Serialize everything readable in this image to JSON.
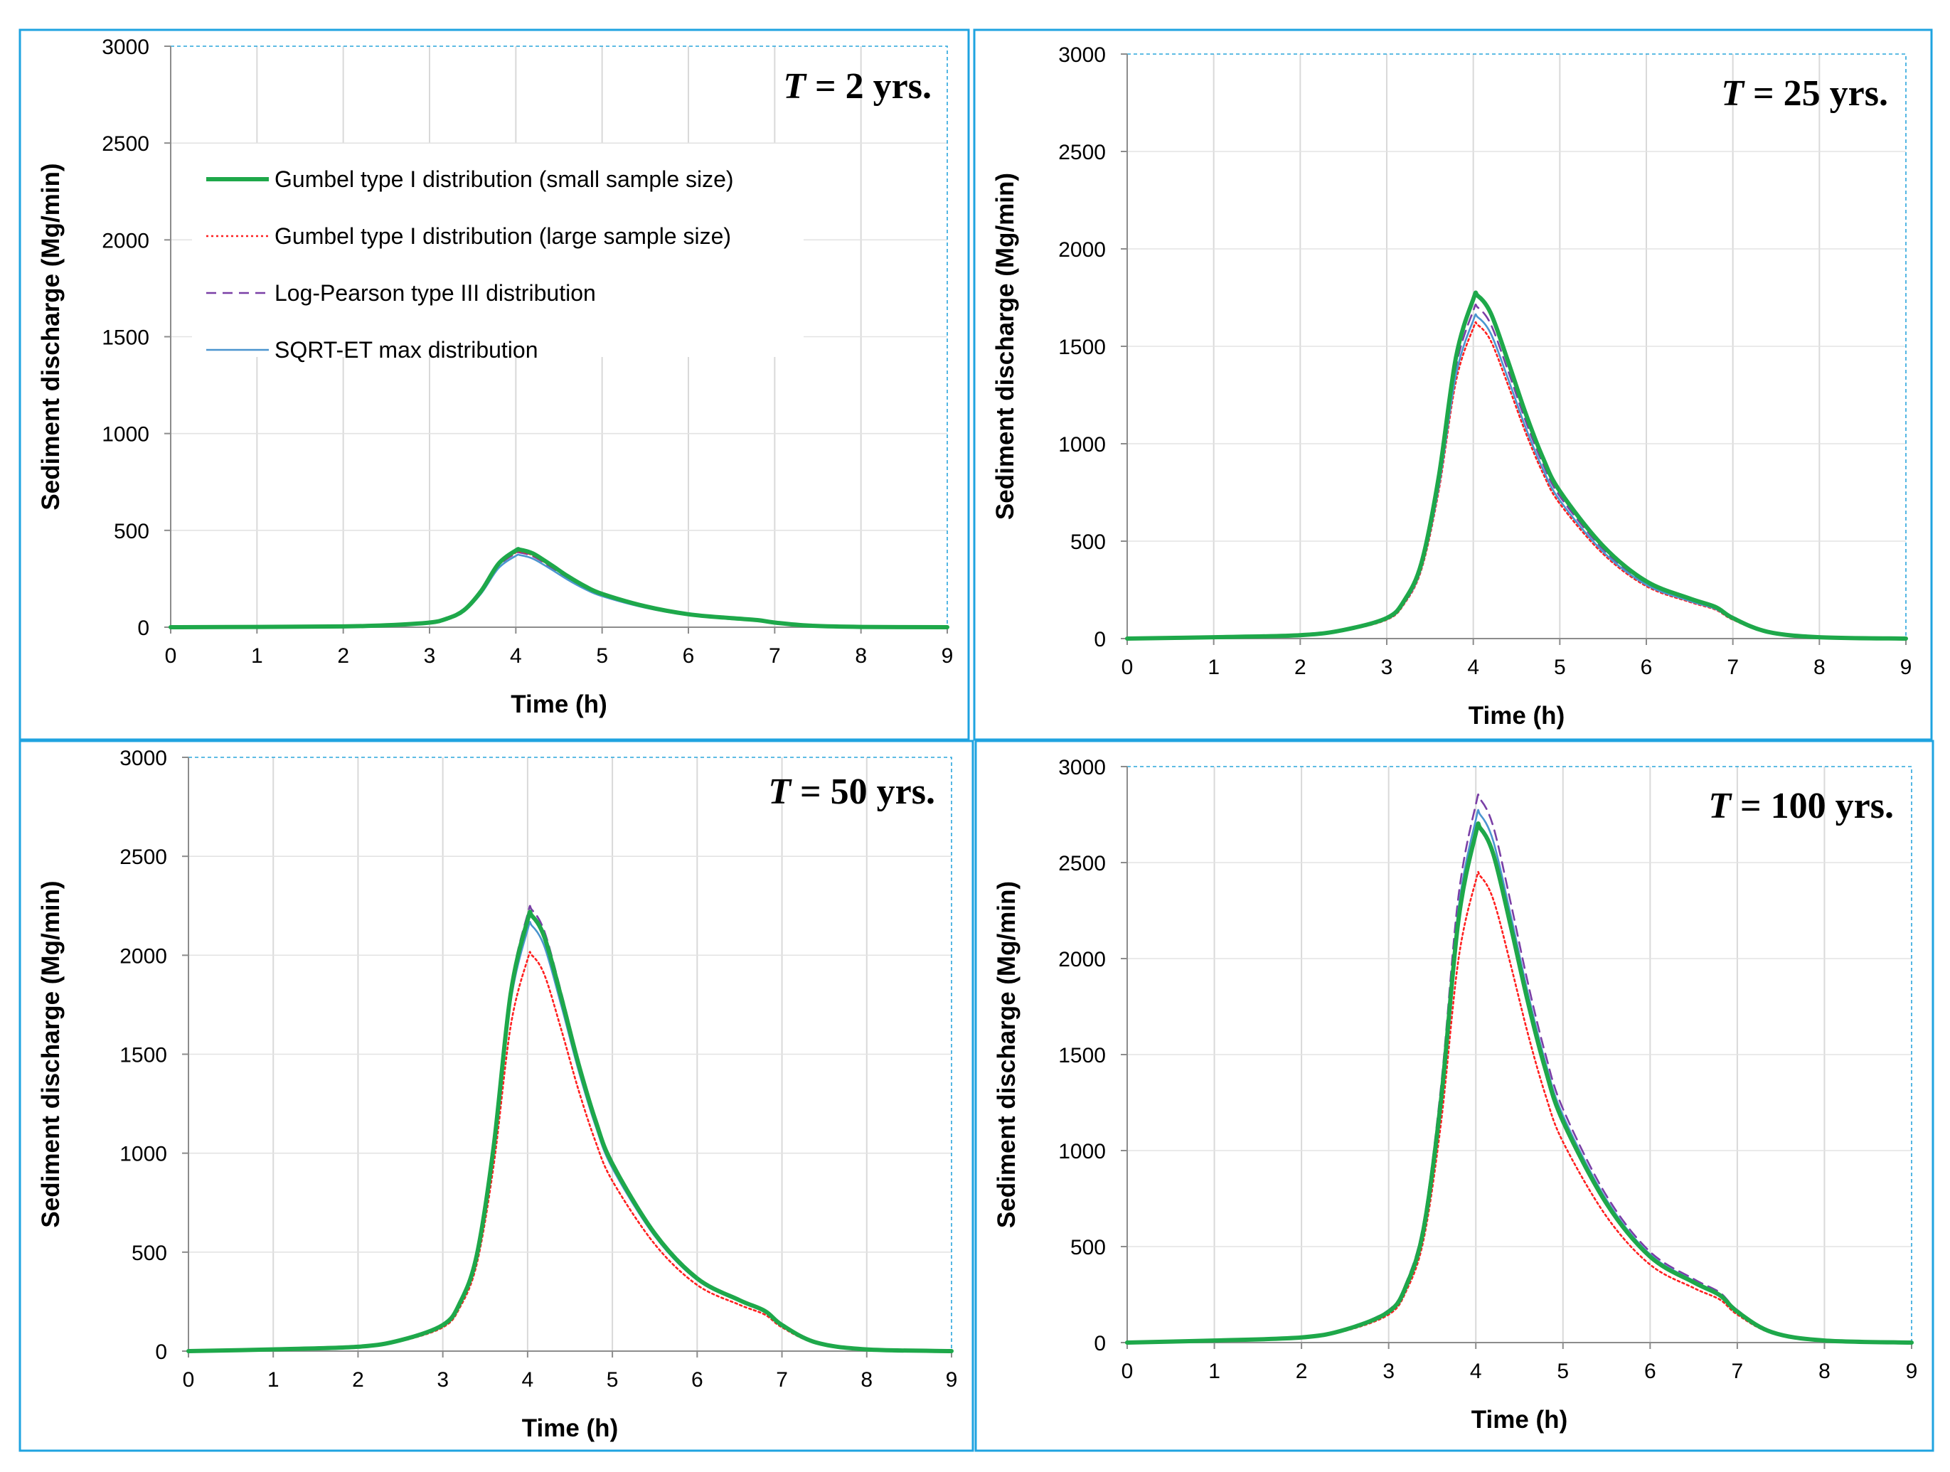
{
  "chart_data": [
    {
      "type": "line",
      "title": "T = 2 yrs.",
      "title_parts": {
        "symbol": "T",
        "rest": " = 2 yrs."
      },
      "xlabel": "Time (h)",
      "ylabel": "Sediment discharge (Mg/min)",
      "xlim": [
        0,
        9
      ],
      "ylim": [
        0,
        3000
      ],
      "xticks": [
        "0",
        "1",
        "2",
        "3",
        "4",
        "5",
        "6",
        "7",
        "8",
        "9"
      ],
      "yticks": [
        "0",
        "500",
        "1000",
        "1500",
        "2000",
        "2500",
        "3000"
      ],
      "legend": {
        "position": "upper-left",
        "entries": [
          "Gumbel type I distribution (small sample size)",
          "Gumbel type I distribution (large sample size)",
          "Log-Pearson type III distribution",
          "SQRT-ET max distribution"
        ]
      },
      "series": [
        {
          "name": "Gumbel type I distribution (small sample size)",
          "peak": 400
        },
        {
          "name": "Gumbel type I distribution (large sample size)",
          "peak": 390
        },
        {
          "name": "Log-Pearson type III distribution",
          "peak": 385
        },
        {
          "name": "SQRT-ET max distribution",
          "peak": 372
        }
      ]
    },
    {
      "type": "line",
      "title": "T = 25 yrs.",
      "title_parts": {
        "symbol": "T",
        "rest": " = 25 yrs."
      },
      "xlabel": "Time (h)",
      "ylabel": "Sediment discharge (Mg/min)",
      "xlim": [
        0,
        9
      ],
      "ylim": [
        0,
        3000
      ],
      "xticks": [
        "0",
        "1",
        "2",
        "3",
        "4",
        "5",
        "6",
        "7",
        "8",
        "9"
      ],
      "yticks": [
        "0",
        "500",
        "1000",
        "1500",
        "2000",
        "2500",
        "3000"
      ],
      "series": [
        {
          "name": "Gumbel type I distribution (small sample size)",
          "peak": 1760
        },
        {
          "name": "Gumbel type I distribution (large sample size)",
          "peak": 1610
        },
        {
          "name": "Log-Pearson type III distribution",
          "peak": 1700
        },
        {
          "name": "SQRT-ET max distribution",
          "peak": 1650
        }
      ]
    },
    {
      "type": "line",
      "title": "T = 50 yrs.",
      "title_parts": {
        "symbol": "T",
        "rest": " = 50 yrs."
      },
      "xlabel": "Time (h)",
      "ylabel": "Sediment discharge (Mg/min)",
      "xlim": [
        0,
        9
      ],
      "ylim": [
        0,
        3000
      ],
      "xticks": [
        "0",
        "1",
        "2",
        "3",
        "4",
        "5",
        "6",
        "7",
        "8",
        "9"
      ],
      "yticks": [
        "0",
        "500",
        "1000",
        "1500",
        "2000",
        "2500",
        "3000"
      ],
      "series": [
        {
          "name": "Gumbel type I distribution (small sample size)",
          "peak": 2200
        },
        {
          "name": "Gumbel type I distribution (large sample size)",
          "peak": 2000
        },
        {
          "name": "Log-Pearson type III distribution",
          "peak": 2230
        },
        {
          "name": "SQRT-ET max distribution",
          "peak": 2150
        }
      ]
    },
    {
      "type": "line",
      "title": "T = 100 yrs.",
      "title_parts": {
        "symbol": "T",
        "rest": " = 100 yrs."
      },
      "xlabel": "Time (h)",
      "ylabel": "Sediment discharge (Mg/min)",
      "xlim": [
        0,
        9
      ],
      "ylim": [
        0,
        3000
      ],
      "xticks": [
        "0",
        "1",
        "2",
        "3",
        "4",
        "5",
        "6",
        "7",
        "8",
        "9"
      ],
      "yticks": [
        "0",
        "500",
        "1000",
        "1500",
        "2000",
        "2500",
        "3000"
      ],
      "series": [
        {
          "name": "Gumbel type I distribution (small sample size)",
          "peak": 2680
        },
        {
          "name": "Gumbel type I distribution (large sample size)",
          "peak": 2430
        },
        {
          "name": "Log-Pearson type III distribution",
          "peak": 2830
        },
        {
          "name": "SQRT-ET max distribution",
          "peak": 2750
        }
      ]
    }
  ],
  "series_styles": [
    {
      "color": "#1ea84a",
      "dash": "none"
    },
    {
      "color": "#ff2020",
      "dash": "dotted"
    },
    {
      "color": "#7a3fa6",
      "dash": "dashed"
    },
    {
      "color": "#4b95cf",
      "dash": "none"
    }
  ],
  "colors": {
    "panel_border": "#1fa3e0",
    "grid": "#d9d9d9"
  },
  "hydrograph_shape": {
    "t_hours": [
      0,
      1,
      2,
      2.5,
      3,
      3.2,
      3.4,
      3.6,
      3.8,
      4.0,
      4.05,
      4.2,
      4.4,
      4.6,
      4.8,
      5.0,
      5.5,
      6.0,
      6.5,
      6.8,
      7.0,
      7.4,
      8.0,
      9.0
    ],
    "relative_discharge": [
      0,
      0.004,
      0.01,
      0.025,
      0.06,
      0.11,
      0.22,
      0.47,
      0.82,
      0.99,
      1.0,
      0.95,
      0.81,
      0.66,
      0.53,
      0.43,
      0.27,
      0.167,
      0.117,
      0.092,
      0.06,
      0.02,
      0.004,
      0
    ]
  }
}
